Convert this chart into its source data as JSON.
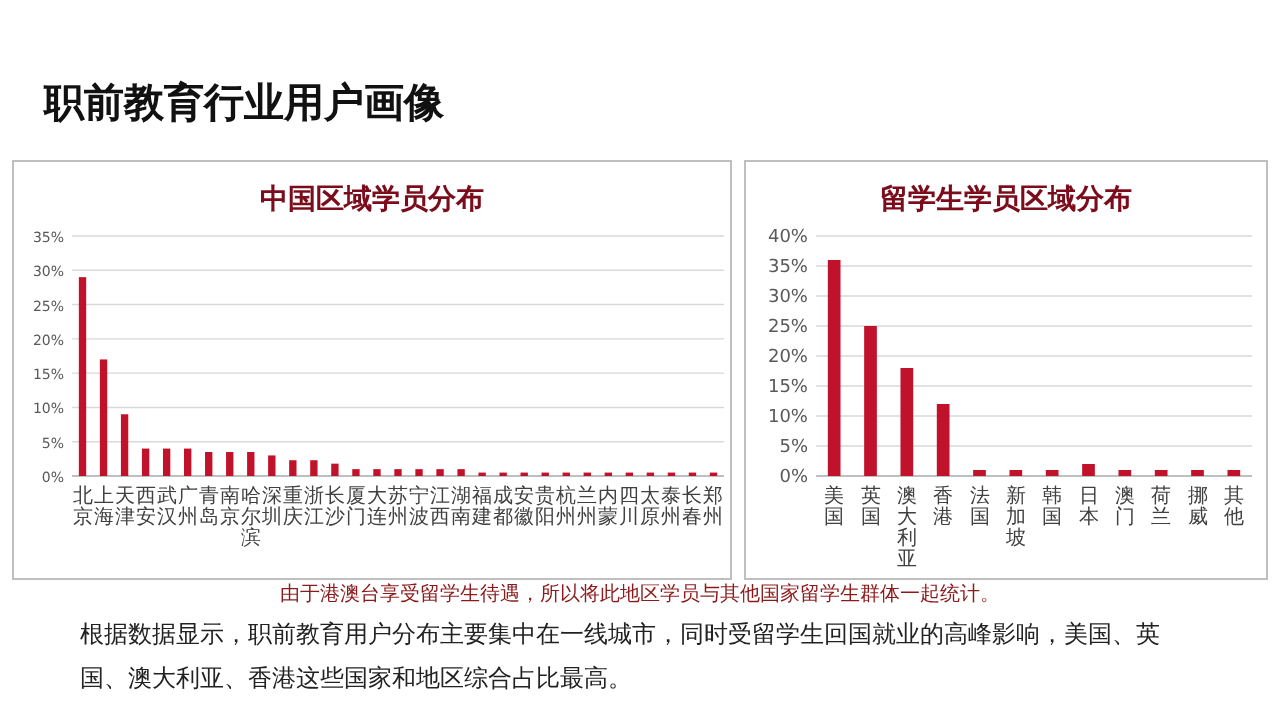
{
  "chart_data": [
    {
      "type": "bar",
      "title": "中国区域学员分布",
      "categories": [
        "北京",
        "上海",
        "天津",
        "西安",
        "武汉",
        "广州",
        "青岛",
        "南京",
        "哈尔滨",
        "深圳",
        "重庆",
        "浙江",
        "长沙",
        "厦门",
        "大连",
        "苏州",
        "宁波",
        "江西",
        "湖南",
        "福建",
        "成都",
        "安徽",
        "贵阳",
        "杭州",
        "兰州",
        "内蒙",
        "四川",
        "太原",
        "泰州",
        "长春",
        "郑州"
      ],
      "values": [
        29,
        17,
        9,
        4,
        4,
        4,
        3.5,
        3.5,
        3.5,
        3,
        2.3,
        2.3,
        1.8,
        1,
        1,
        1,
        1,
        1,
        1,
        0.5,
        0.5,
        0.5,
        0.5,
        0.5,
        0.5,
        0.5,
        0.5,
        0.5,
        0.5,
        0.5,
        0.5
      ],
      "color": "#c0132b",
      "ylim": [
        0,
        35
      ],
      "yticks": [
        {
          "value": 0,
          "label": "0%"
        },
        {
          "value": 5,
          "label": "5%"
        },
        {
          "value": 10,
          "label": "10%"
        },
        {
          "value": 15,
          "label": "15%"
        },
        {
          "value": 20,
          "label": "20%"
        },
        {
          "value": 25,
          "label": "25%"
        },
        {
          "value": 30,
          "label": "30%"
        },
        {
          "value": 35,
          "label": "35%"
        }
      ],
      "grid": "y",
      "annotations": [
        "职前教育行业用户画像",
        "由于港澳台享受留学生待遇，所以将此地区学员与其他国家留学生群体一起统计。",
        "根据数据显示，职前教育用户分布主要集中在一线城市，同时受留学生回国就业的高峰影响，美国、英国、澳大利亚、香港这些国家和地区综合占比最高。"
      ]
    },
    {
      "type": "bar",
      "title": "留学生学员区域分布",
      "categories": [
        "美国",
        "英国",
        "澳大利亚",
        "香港",
        "法国",
        "新加坡",
        "韩国",
        "日本",
        "澳门",
        "荷兰",
        "挪威",
        "其他"
      ],
      "values": [
        36,
        25,
        18,
        12,
        1,
        1,
        1,
        2,
        1,
        1,
        1,
        1
      ],
      "color": "#c0132b",
      "ylim": [
        0,
        40
      ],
      "yticks": [
        {
          "value": 0,
          "label": "0%"
        },
        {
          "value": 5,
          "label": "5%"
        },
        {
          "value": 10,
          "label": "10%"
        },
        {
          "value": 15,
          "label": "15%"
        },
        {
          "value": 20,
          "label": "20%"
        },
        {
          "value": 25,
          "label": "25%"
        },
        {
          "value": 30,
          "label": "30%"
        },
        {
          "value": 35,
          "label": "35%"
        },
        {
          "value": 40,
          "label": "40%"
        }
      ],
      "grid": "y"
    }
  ]
}
